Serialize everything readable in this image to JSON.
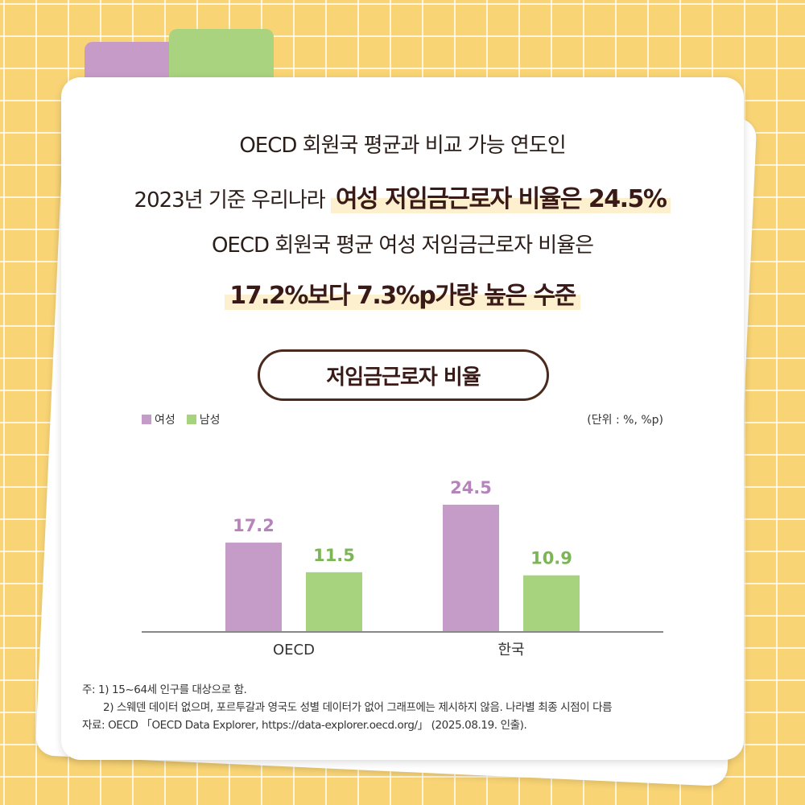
{
  "headline": {
    "line1": "OECD 회원국 평균과 비교 가능 연도인",
    "line2_prefix": "2023년 기준 우리나라",
    "line2_highlight": "여성 저임금근로자 비율은 24.5%",
    "line3": "OECD 회원국 평균 여성 저임금근로자 비율은",
    "line4_highlight": "17.2%보다 7.3%p가량 높은 수준"
  },
  "chart_title": "저임금근로자 비율",
  "legend": [
    {
      "label": "여성",
      "color": "#c59bc8"
    },
    {
      "label": "남성",
      "color": "#a8d37e"
    }
  ],
  "unit_label": "(단위 : %, %p)",
  "chart_data": {
    "type": "bar",
    "title": "저임금근로자 비율",
    "categories": [
      "OECD",
      "한국"
    ],
    "series": [
      {
        "name": "여성",
        "values": [
          17.2,
          24.5
        ],
        "color": "#c59bc8",
        "label_color": "#b783bd"
      },
      {
        "name": "남성",
        "values": [
          11.5,
          10.9
        ],
        "color": "#a8d37e",
        "label_color": "#7cb555"
      }
    ],
    "ylim": [
      0,
      30
    ],
    "grid": false,
    "legend_position": "top-left",
    "xlabel": "",
    "ylabel": ""
  },
  "notes": {
    "note1": "주: 1) 15~64세 인구를 대상으로 함.",
    "note2": "2) 스웨덴 데이터 없으며, 포르투갈과 영국도 성별 데이터가 없어 그래프에는 제시하지 않음. 나라별 최종 시점이 다름",
    "source": "자료: OECD 「OECD Data Explorer, https://data-explorer.oecd.org/」 (2025.08.19. 인출)."
  }
}
